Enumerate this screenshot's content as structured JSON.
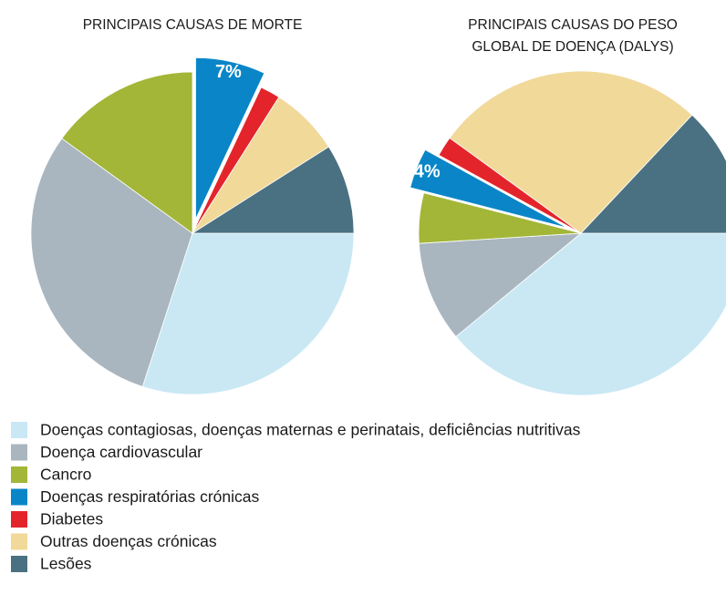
{
  "chart_data": [
    {
      "type": "pie",
      "title": [
        "PRINCIPAIS CAUSAS DE MORTE"
      ],
      "categories": [
        "Doenças contagiosas, doenças maternas e perinatais, deficiências nutritivas",
        "Doença cardiovascular",
        "Cancro",
        "Doenças respiratórias crónicas",
        "Diabetes",
        "Outras doenças crónicas",
        "Lesões"
      ],
      "values": [
        30,
        30,
        15,
        7,
        2,
        7,
        9
      ],
      "value_labels": [
        null,
        null,
        null,
        "7%",
        null,
        null,
        null
      ],
      "explode": [
        0,
        0,
        0,
        1,
        0,
        0,
        0
      ],
      "colors": [
        "#c9e8f4",
        "#a9b6bf",
        "#a3b637",
        "#0a86c8",
        "#e4242b",
        "#f1d99a",
        "#4a7182"
      ]
    },
    {
      "type": "pie",
      "title": [
        "PRINCIPAIS CAUSAS DO PESO",
        "GLOBAL DE DOENÇA (DALYS)"
      ],
      "categories": [
        "Doenças contagiosas, doenças maternas e perinatais, deficiências nutritivas",
        "Doença cardiovascular",
        "Cancro",
        "Doenças respiratórias crónicas",
        "Diabetes",
        "Outras doenças crónicas",
        "Lesões"
      ],
      "values": [
        39,
        10,
        5,
        4,
        2,
        27,
        13
      ],
      "value_labels": [
        null,
        null,
        null,
        "4%",
        null,
        null,
        null
      ],
      "explode": [
        0,
        0,
        0,
        1,
        0,
        0,
        0
      ],
      "colors": [
        "#c9e8f4",
        "#a9b6bf",
        "#a3b637",
        "#0a86c8",
        "#e4242b",
        "#f1d99a",
        "#4a7182"
      ]
    }
  ]
}
